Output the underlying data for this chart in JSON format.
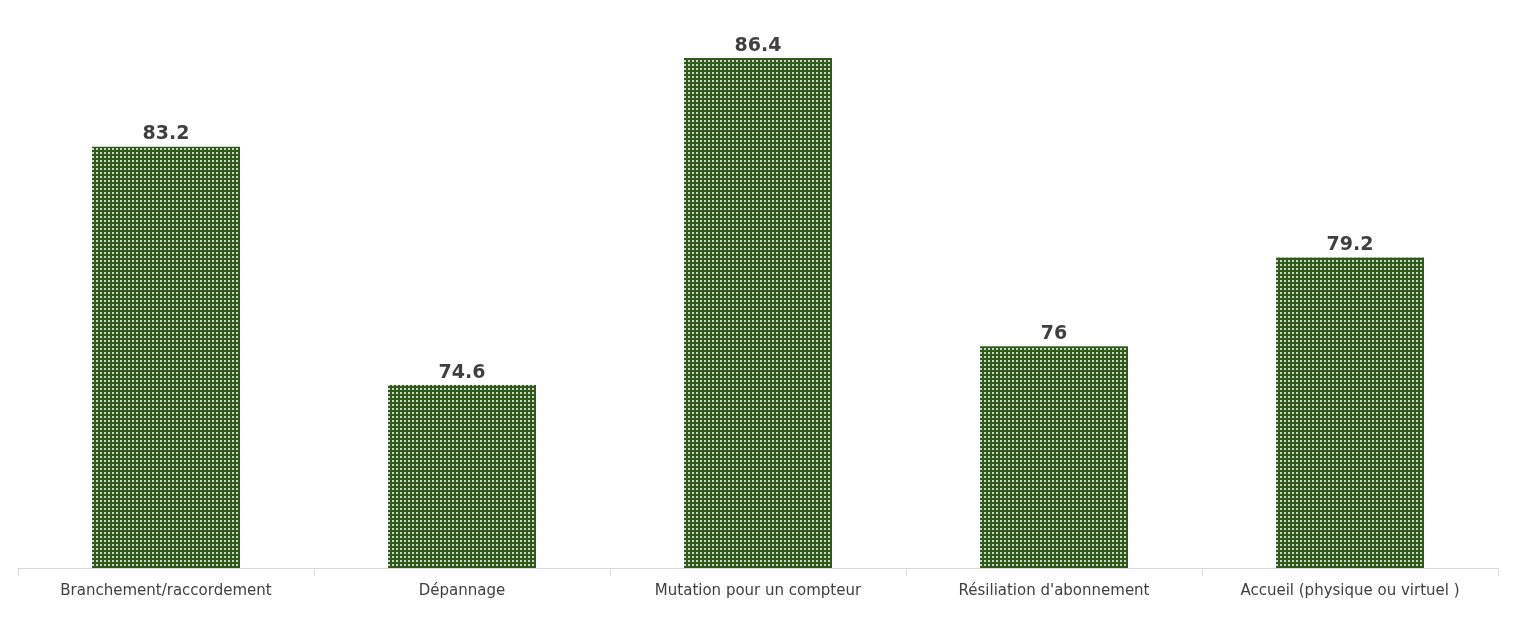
{
  "chart_data": {
    "type": "bar",
    "categories": [
      "Branchement/raccordement",
      "Dépannage",
      "Mutation pour un compteur",
      "Résiliation d'abonnement",
      "Accueil (physique ou virtuel )"
    ],
    "values": [
      83.2,
      74.6,
      86.4,
      76,
      79.2
    ],
    "color": "#2f5a1a",
    "ylim": [
      68,
      86.4
    ],
    "data_labels": true,
    "grid": false
  }
}
